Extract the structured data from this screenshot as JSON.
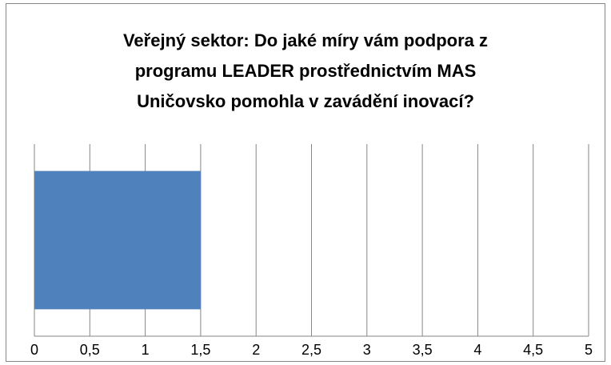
{
  "chart_data": {
    "type": "bar",
    "orientation": "horizontal",
    "title": "Veřejný sektor: Do jaké míry vám podpora z\nprogramu LEADER prostřednictvím MAS\nUničovsko pomohla v zavádění inovací?",
    "categories": [
      null
    ],
    "values": [
      1.5
    ],
    "color": "#4f81bd",
    "xlim": [
      0,
      5
    ],
    "xticks": [
      0,
      {
        "value": 0.5,
        "label": "0,5"
      },
      1,
      {
        "value": 1.5,
        "label": "1,5"
      },
      2,
      {
        "value": 2.5,
        "label": "2,5"
      },
      3,
      {
        "value": 3.5,
        "label": "3,5"
      },
      4,
      {
        "value": 4.5,
        "label": "4,5"
      },
      5
    ],
    "grid": true
  }
}
